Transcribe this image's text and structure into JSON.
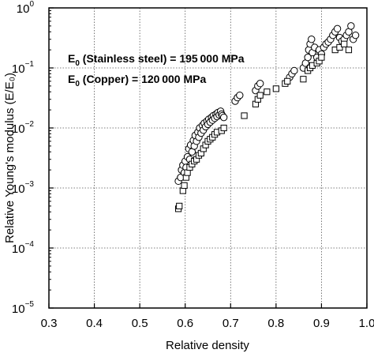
{
  "chart_data": {
    "type": "scatter",
    "xlabel": "Relative density",
    "ylabel": "Relative Young's modulus (E/E₀)",
    "xlim": [
      0.3,
      1.0
    ],
    "ylim": [
      1e-05,
      1
    ],
    "yscale": "log",
    "grid": true,
    "x_ticks": [
      "0.3",
      "0.4",
      "0.5",
      "0.6",
      "0.7",
      "0.8",
      "0.9",
      "1.0"
    ],
    "y_ticks": [
      {
        "base": "10",
        "exp": "0"
      },
      {
        "base": "10",
        "exp": "−1"
      },
      {
        "base": "10",
        "exp": "−2"
      },
      {
        "base": "10",
        "exp": "−3"
      },
      {
        "base": "10",
        "exp": "−4"
      },
      {
        "base": "10",
        "exp": "−5"
      }
    ],
    "annotations": [
      {
        "e": "E",
        "sub": "0",
        "text": " (Stainless steel) = 195 000 MPa"
      },
      {
        "e": "E",
        "sub": "0",
        "text": " (Copper) = 120 000 MPa"
      }
    ],
    "series": [
      {
        "marker": "circle",
        "points": [
          [
            0.585,
            0.0013
          ],
          [
            0.59,
            0.0015
          ],
          [
            0.592,
            0.002
          ],
          [
            0.595,
            0.0024
          ],
          [
            0.598,
            0.0018
          ],
          [
            0.6,
            0.0028
          ],
          [
            0.602,
            0.0022
          ],
          [
            0.605,
            0.0033
          ],
          [
            0.608,
            0.0045
          ],
          [
            0.61,
            0.003
          ],
          [
            0.612,
            0.0052
          ],
          [
            0.615,
            0.004
          ],
          [
            0.618,
            0.0062
          ],
          [
            0.62,
            0.005
          ],
          [
            0.622,
            0.0075
          ],
          [
            0.625,
            0.006
          ],
          [
            0.628,
            0.0085
          ],
          [
            0.63,
            0.007
          ],
          [
            0.632,
            0.01
          ],
          [
            0.635,
            0.0082
          ],
          [
            0.638,
            0.011
          ],
          [
            0.64,
            0.0092
          ],
          [
            0.642,
            0.012
          ],
          [
            0.645,
            0.0105
          ],
          [
            0.648,
            0.013
          ],
          [
            0.65,
            0.0115
          ],
          [
            0.652,
            0.014
          ],
          [
            0.655,
            0.0125
          ],
          [
            0.658,
            0.015
          ],
          [
            0.66,
            0.0135
          ],
          [
            0.662,
            0.016
          ],
          [
            0.665,
            0.0145
          ],
          [
            0.668,
            0.017
          ],
          [
            0.67,
            0.0155
          ],
          [
            0.672,
            0.018
          ],
          [
            0.675,
            0.0165
          ],
          [
            0.678,
            0.019
          ],
          [
            0.68,
            0.017
          ],
          [
            0.682,
            0.016
          ],
          [
            0.685,
            0.015
          ],
          [
            0.71,
            0.028
          ],
          [
            0.715,
            0.032
          ],
          [
            0.72,
            0.035
          ],
          [
            0.755,
            0.042
          ],
          [
            0.76,
            0.05
          ],
          [
            0.765,
            0.055
          ],
          [
            0.83,
            0.07
          ],
          [
            0.835,
            0.08
          ],
          [
            0.84,
            0.09
          ],
          [
            0.86,
            0.1
          ],
          [
            0.865,
            0.12
          ],
          [
            0.87,
            0.15
          ],
          [
            0.872,
            0.2
          ],
          [
            0.875,
            0.25
          ],
          [
            0.878,
            0.3
          ],
          [
            0.88,
            0.18
          ],
          [
            0.885,
            0.22
          ],
          [
            0.89,
            0.15
          ],
          [
            0.895,
            0.2
          ],
          [
            0.9,
            0.17
          ],
          [
            0.905,
            0.22
          ],
          [
            0.91,
            0.25
          ],
          [
            0.915,
            0.27
          ],
          [
            0.92,
            0.3
          ],
          [
            0.925,
            0.35
          ],
          [
            0.93,
            0.4
          ],
          [
            0.935,
            0.45
          ],
          [
            0.94,
            0.32
          ],
          [
            0.945,
            0.28
          ],
          [
            0.95,
            0.3
          ],
          [
            0.955,
            0.35
          ],
          [
            0.96,
            0.4
          ],
          [
            0.965,
            0.5
          ],
          [
            0.97,
            0.3
          ],
          [
            0.975,
            0.35
          ]
        ]
      },
      {
        "marker": "square",
        "points": [
          [
            0.585,
            0.00045
          ],
          [
            0.587,
            0.0005
          ],
          [
            0.595,
            0.0009
          ],
          [
            0.598,
            0.0011
          ],
          [
            0.602,
            0.0015
          ],
          [
            0.605,
            0.0018
          ],
          [
            0.61,
            0.0022
          ],
          [
            0.615,
            0.0025
          ],
          [
            0.62,
            0.0028
          ],
          [
            0.625,
            0.003
          ],
          [
            0.63,
            0.0035
          ],
          [
            0.635,
            0.0038
          ],
          [
            0.64,
            0.0045
          ],
          [
            0.645,
            0.0052
          ],
          [
            0.65,
            0.006
          ],
          [
            0.655,
            0.0065
          ],
          [
            0.66,
            0.007
          ],
          [
            0.665,
            0.0078
          ],
          [
            0.67,
            0.0085
          ],
          [
            0.68,
            0.009
          ],
          [
            0.685,
            0.01
          ],
          [
            0.73,
            0.016
          ],
          [
            0.755,
            0.025
          ],
          [
            0.76,
            0.03
          ],
          [
            0.765,
            0.035
          ],
          [
            0.78,
            0.04
          ],
          [
            0.8,
            0.045
          ],
          [
            0.82,
            0.055
          ],
          [
            0.825,
            0.06
          ],
          [
            0.86,
            0.065
          ],
          [
            0.87,
            0.09
          ],
          [
            0.875,
            0.1
          ],
          [
            0.88,
            0.11
          ],
          [
            0.89,
            0.12
          ],
          [
            0.895,
            0.13
          ],
          [
            0.9,
            0.15
          ],
          [
            0.93,
            0.2
          ],
          [
            0.94,
            0.22
          ],
          [
            0.95,
            0.25
          ],
          [
            0.96,
            0.2
          ]
        ]
      }
    ]
  }
}
